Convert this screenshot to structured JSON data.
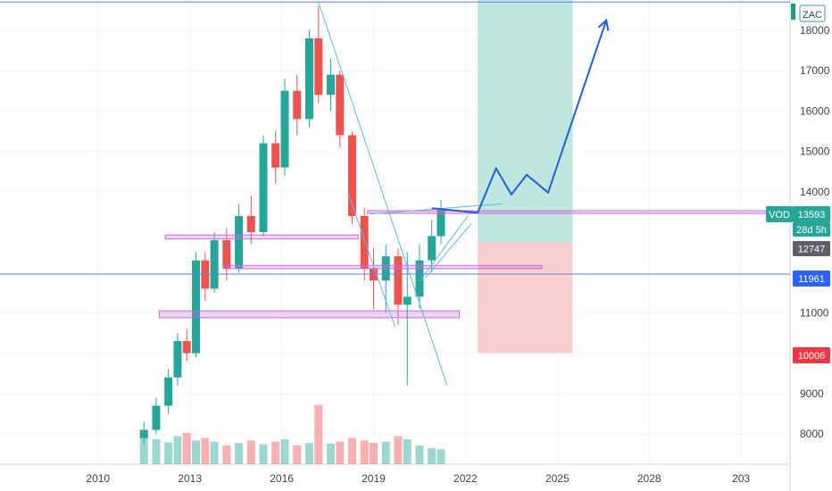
{
  "chart_data": {
    "type": "candlestick",
    "currency_badge": "ZAC",
    "symbol": "VOD",
    "last_price": "13593",
    "countdown": "28d 5h",
    "level_labels": [
      "12747",
      "11961",
      "10006"
    ],
    "x_ticks": [
      "2010",
      "2013",
      "2016",
      "2019",
      "2022",
      "2025",
      "2028",
      "203"
    ],
    "y_ticks": [
      "18000",
      "17000",
      "16000",
      "15000",
      "14000",
      "11000",
      "10000",
      "9000",
      "8000"
    ],
    "y_range": [
      7250,
      18750
    ],
    "time_range": [
      2006.8,
      2032.6
    ],
    "colors": {
      "up": "#26a69a",
      "down": "#ef5350",
      "hline": "#5b7cf0",
      "zone": "#c86dd7",
      "projection": "#1e5fe0",
      "trend": "#5fb8e6",
      "target": "#bfe6df",
      "stop": "#f9cfcf",
      "badge_symbol": "#26a69a",
      "badge_level": "#2962ff",
      "badge_stop": "#f23645",
      "badge_entry": "#5d606b"
    },
    "horizontal_lines": [
      18700,
      11961
    ],
    "zones": [
      {
        "from": 2012.2,
        "to": 2018.5,
        "low": 12830,
        "high": 12930
      },
      {
        "from": 2014.1,
        "to": 2024.5,
        "low": 12095,
        "high": 12175
      },
      {
        "from": 2012.0,
        "to": 2021.8,
        "low": 10880,
        "high": 11050
      },
      {
        "from": 2018.8,
        "to": 2032.6,
        "low": 13470,
        "high": 13530
      }
    ],
    "position": {
      "time_from": 2022.4,
      "time_to": 2025.5,
      "entry": 12747,
      "target": 18750,
      "stop": 10006
    },
    "projection_path": [
      [
        2020.9,
        13593
      ],
      [
        2022.4,
        13480
      ],
      [
        2023.0,
        14580
      ],
      [
        2023.5,
        13930
      ],
      [
        2024.0,
        14420
      ],
      [
        2024.7,
        13980
      ],
      [
        2026.6,
        18250
      ]
    ],
    "trend_lines": [
      [
        [
          2017.2,
          18700
        ],
        [
          2021.4,
          9200
        ]
      ],
      [
        [
          2018.9,
          13450
        ],
        [
          2023.2,
          13700
        ]
      ],
      [
        [
          2020.5,
          11780
        ],
        [
          2022.1,
          13420
        ]
      ],
      [
        [
          2020.7,
          11880
        ],
        [
          2022.2,
          13220
        ]
      ],
      [
        [
          2019.7,
          10650
        ],
        [
          2018.2,
          13900
        ]
      ]
    ],
    "candles": [
      [
        2011.5,
        7900,
        8100,
        7750,
        8300
      ],
      [
        2011.9,
        8100,
        8700,
        8000,
        8900
      ],
      [
        2012.3,
        8700,
        9400,
        8500,
        9600
      ],
      [
        2012.6,
        9400,
        10300,
        9200,
        10500
      ],
      [
        2012.9,
        10300,
        10000,
        9800,
        10600
      ],
      [
        2013.2,
        10000,
        12300,
        9900,
        12500
      ],
      [
        2013.5,
        12300,
        11600,
        11300,
        12500
      ],
      [
        2013.8,
        11600,
        12800,
        11500,
        13000
      ],
      [
        2014.2,
        12800,
        12100,
        11800,
        13100
      ],
      [
        2014.6,
        12100,
        13400,
        12000,
        13700
      ],
      [
        2015.0,
        13400,
        13000,
        12700,
        13900
      ],
      [
        2015.4,
        13000,
        15200,
        12900,
        15400
      ],
      [
        2015.8,
        15200,
        14600,
        14200,
        15500
      ],
      [
        2016.1,
        14600,
        16500,
        14400,
        16800
      ],
      [
        2016.5,
        16500,
        15800,
        15400,
        16900
      ],
      [
        2016.9,
        15800,
        17800,
        15600,
        18000
      ],
      [
        2017.2,
        17800,
        16400,
        16200,
        18600
      ],
      [
        2017.6,
        16400,
        16900,
        16000,
        17300
      ],
      [
        2017.9,
        16900,
        15400,
        15100,
        17000
      ],
      [
        2018.3,
        15400,
        13400,
        13200,
        15500
      ],
      [
        2018.7,
        13400,
        12100,
        11800,
        13600
      ],
      [
        2019.0,
        12100,
        11800,
        11100,
        12600
      ],
      [
        2019.4,
        11800,
        12400,
        11000,
        12700
      ],
      [
        2019.8,
        12400,
        11200,
        10700,
        12600
      ],
      [
        2020.1,
        11200,
        11400,
        9200,
        12500
      ],
      [
        2020.5,
        11400,
        12300,
        11100,
        12700
      ],
      [
        2020.9,
        12300,
        12900,
        12000,
        13300
      ],
      [
        2021.2,
        12900,
        13593,
        12700,
        13800
      ]
    ],
    "volume": [
      [
        2011.5,
        0.55
      ],
      [
        2011.9,
        0.4
      ],
      [
        2012.3,
        0.35
      ],
      [
        2012.6,
        0.45
      ],
      [
        2012.9,
        0.5
      ],
      [
        2013.2,
        0.38
      ],
      [
        2013.5,
        0.42
      ],
      [
        2013.8,
        0.36
      ],
      [
        2014.2,
        0.3
      ],
      [
        2014.6,
        0.34
      ],
      [
        2015.0,
        0.38
      ],
      [
        2015.4,
        0.32
      ],
      [
        2015.8,
        0.36
      ],
      [
        2016.1,
        0.4
      ],
      [
        2016.5,
        0.3
      ],
      [
        2016.9,
        0.34
      ],
      [
        2017.2,
        0.95
      ],
      [
        2017.6,
        0.33
      ],
      [
        2017.9,
        0.36
      ],
      [
        2018.3,
        0.42
      ],
      [
        2018.7,
        0.38
      ],
      [
        2019.0,
        0.34
      ],
      [
        2019.4,
        0.36
      ],
      [
        2019.8,
        0.45
      ],
      [
        2020.1,
        0.4
      ],
      [
        2020.5,
        0.3
      ],
      [
        2020.9,
        0.26
      ],
      [
        2021.2,
        0.24
      ]
    ]
  }
}
